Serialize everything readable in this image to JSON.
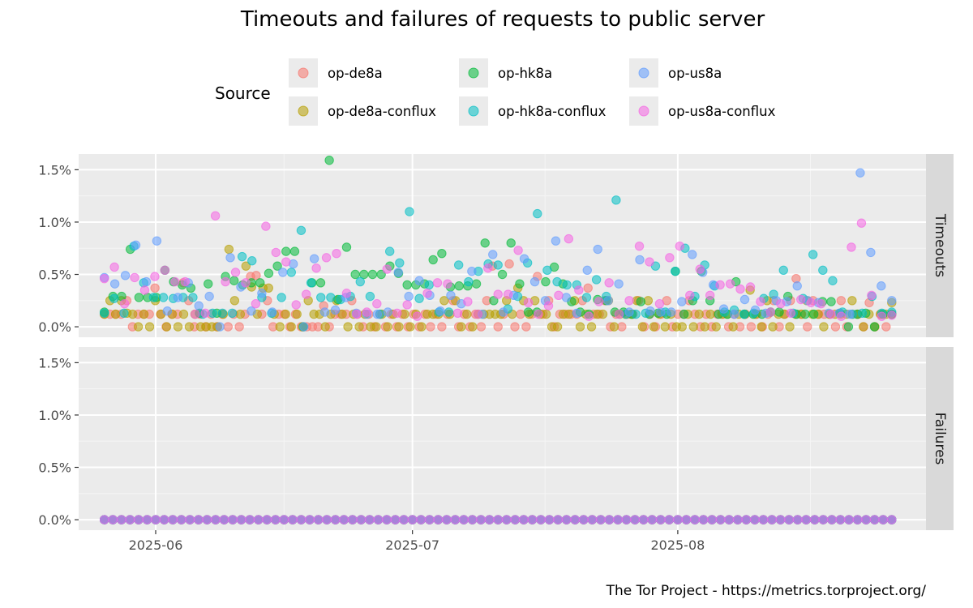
{
  "chart_data": {
    "type": "scatter",
    "title": "Timeouts and failures of requests to public server",
    "caption": "The Tor Project - https://metrics.torproject.org/",
    "legend": {
      "title": "Source",
      "placement": "top",
      "entries": [
        {
          "name": "op-de8a",
          "color": "#F8766D"
        },
        {
          "name": "op-de8a-conflux",
          "color": "#B79F00"
        },
        {
          "name": "op-hk8a",
          "color": "#00BA38"
        },
        {
          "name": "op-hk8a-conflux",
          "color": "#00BFC4"
        },
        {
          "name": "op-us8a",
          "color": "#619CFF"
        },
        {
          "name": "op-us8a-conflux",
          "color": "#F564E3"
        }
      ]
    },
    "x_axis": {
      "type": "date",
      "range": [
        "2025-05-23",
        "2025-08-30"
      ],
      "ticks": [
        "2025-06",
        "2025-07",
        "2025-08"
      ],
      "tick_dates": [
        "2025-06-01",
        "2025-07-01",
        "2025-08-01"
      ]
    },
    "y_axis": {
      "unit": "percent",
      "range": [
        -0.1,
        1.65
      ],
      "ticks": [
        "0.0%",
        "0.5%",
        "1.0%",
        "1.5%"
      ],
      "tick_values": [
        0,
        0.5,
        1.0,
        1.5
      ]
    },
    "grid": true,
    "start_date": "2025-05-26",
    "end_date": "2025-08-26",
    "facets": [
      {
        "label": "Timeouts",
        "series": [
          {
            "name": "op-de8a",
            "values": [
              0.12,
              0.12,
              0.12,
              0.12,
              0.25,
              0,
              0.12,
              0.12,
              0.12,
              0.37,
              0.12,
              0,
              0.12,
              0.12,
              0.42,
              0.25,
              0,
              0.12,
              0,
              0.12,
              0,
              0.12,
              0,
              0.12,
              0,
              0.12,
              0.48,
              0.49,
              0.12,
              0.25,
              0,
              0.12,
              0.12,
              0,
              0.12,
              0,
              0,
              0,
              0,
              0.2,
              0,
              0.12,
              0.12,
              0.12,
              0.25,
              0.12,
              0,
              0.12,
              0,
              0.12,
              0,
              0.12,
              0,
              0.12,
              0,
              0.12,
              0,
              0.12,
              0,
              0.12,
              0,
              0.12,
              0.25,
              0,
              0.12,
              0,
              0.12,
              0,
              0.25,
              0.58,
              0,
              0.12,
              0.6,
              0,
              0.12,
              0,
              0.12,
              0.48,
              0.12,
              0.25,
              0,
              0.12,
              0.12,
              0.12,
              0.12,
              0.25,
              0.37,
              0.12,
              0.12,
              0.25,
              0,
              0.12,
              0,
              0.12,
              0.12,
              0.25,
              0,
              0.12,
              0,
              0.12,
              0.25,
              0,
              0.12,
              0.12,
              0.25,
              0.12,
              0,
              0.12,
              0,
              0.12,
              0.12,
              0,
              0.12,
              0,
              0.12,
              0,
              0.12,
              0,
              0.12,
              0.25,
              0,
              0.12,
              0.25,
              0.46,
              0.12,
              0,
              0.25,
              0.12,
              0.12,
              0.12,
              0,
              0.25,
              0,
              0.12,
              0.12,
              0,
              0.23,
              0,
              0.12,
              0,
              0.12
            ]
          },
          {
            "name": "op-de8a-conflux",
            "values": [
              0.12,
              0.25,
              0.12,
              0.25,
              0.13,
              0.12,
              0,
              0.12,
              0,
              0.25,
              0.12,
              0,
              0.12,
              0,
              0.12,
              0,
              0.12,
              0,
              0,
              0,
              0,
              0.12,
              0.74,
              0.25,
              0.12,
              0.58,
              0.38,
              0.12,
              0.37,
              0.37,
              0.12,
              0,
              0.12,
              0,
              0.12,
              0,
              0.25,
              0.12,
              0.12,
              0,
              0.12,
              0.25,
              0.12,
              0,
              0.12,
              0,
              0.12,
              0,
              0,
              0.12,
              0,
              0.12,
              0,
              0.12,
              0,
              0.12,
              0,
              0.12,
              0.12,
              0.12,
              0.25,
              0.12,
              0.25,
              0,
              0.12,
              0,
              0.12,
              0.12,
              0.12,
              0.12,
              0.12,
              0.25,
              0.12,
              0.37,
              0.25,
              0.12,
              0.25,
              0.12,
              0.12,
              0,
              0,
              0.12,
              0.12,
              0.25,
              0,
              0.12,
              0,
              0.12,
              0.12,
              0.25,
              0,
              0.12,
              0.12,
              0.12,
              0.25,
              0,
              0.25,
              0,
              0.12,
              0,
              0.12,
              0,
              0,
              0.12,
              0,
              0.12,
              0,
              0.12,
              0,
              0.12,
              0.12,
              0,
              0.12,
              0.12,
              0.35,
              0.12,
              0,
              0.25,
              0,
              0.12,
              0.12,
              0,
              0.12,
              0.12,
              0.25,
              0.12,
              0.12,
              0,
              0.12,
              0.12,
              0.12,
              0.12,
              0.25,
              0.12,
              0,
              0.12,
              0,
              0.12,
              0.12,
              0.23
            ]
          },
          {
            "name": "op-hk8a",
            "values": [
              0.14,
              0.29,
              0.29,
              0.74,
              0.28,
              0.28,
              0.28,
              0.54,
              0.43,
              0.4,
              0.37,
              0.13,
              0.41,
              0.13,
              0.48,
              0.44,
              0.4,
              0.42,
              0.42,
              0.51,
              0.58,
              0.72,
              0.72,
              0,
              0.42,
              0.42,
              1.59,
              0.26,
              0.76,
              0.5,
              0.5,
              0.5,
              0.5,
              0.58,
              0.51,
              0.4,
              0.4,
              0.41,
              0.64,
              0.7,
              0.38,
              0.39,
              0.39,
              0.41,
              0.8,
              0.25,
              0.5,
              0.8,
              0.41,
              0.14,
              0.14,
              0.43,
              0.57,
              0.41,
              0.24,
              0.14,
              0.12,
              0.26,
              0.25,
              0.14,
              0.14,
              0.12,
              0.24,
              0.12,
              0.13,
              0.12,
              0.53,
              0.12,
              0.25,
              0.53,
              0.25,
              0.12,
              0.12,
              0.43,
              0.12,
              0.12,
              0.12,
              0.14,
              0.14,
              0.29,
              0.12,
              0.12,
              0.12,
              0.24,
              0.24,
              0.13,
              0,
              0.12,
              0.13,
              0,
              0.12,
              0.12
            ]
          },
          {
            "name": "op-hk8a-conflux",
            "values": [
              0.13,
              0.27,
              0.13,
              0.77,
              0.42,
              0.28,
              0.28,
              0.27,
              0.28,
              0.28,
              0.12,
              0.13,
              0.13,
              0.13,
              0.67,
              0.63,
              0.28,
              0.13,
              0.28,
              0.52,
              0.92,
              0.42,
              0.28,
              0.28,
              0.26,
              0.29,
              0.43,
              0.29,
              0.12,
              0.72,
              0.61,
              1.1,
              0.27,
              0.4,
              0.14,
              0.14,
              0.59,
              0.43,
              0.53,
              0.6,
              0.59,
              0.17,
              0.29,
              0.61,
              1.08,
              0.54,
              0.43,
              0.4,
              0.4,
              0.28,
              0.45,
              0.29,
              1.21,
              0.12,
              0.12,
              0.13,
              0.58,
              0.14,
              0.53,
              0.75,
              0.29,
              0.59,
              0.39,
              0.14,
              0.16,
              0.12,
              0.13,
              0.27,
              0.31,
              0.54,
              0.13,
              0.27,
              0.69,
              0.54,
              0.44,
              0.14,
              0.12,
              0.13,
              0.29,
              0.13,
              0.14
            ]
          },
          {
            "name": "op-us8a",
            "values": [
              0.47,
              0.41,
              0.49,
              0.78,
              0.43,
              0.82,
              0.15,
              0.28,
              0.42,
              0.2,
              0.29,
              0,
              0.66,
              0.38,
              0.15,
              0.32,
              0.14,
              0.52,
              0.6,
              0,
              0.65,
              0.14,
              0.16,
              0.28,
              0.13,
              0.12,
              0.12,
              0.14,
              0.52,
              0.29,
              0.44,
              0.3,
              0.15,
              0.3,
              0.22,
              0.53,
              0.12,
              0.69,
              0.14,
              0.3,
              0.65,
              0.43,
              0.25,
              0.82,
              0.28,
              0.13,
              0.54,
              0.74,
              0.25,
              0.41,
              0.14,
              0.64,
              0.15,
              0.14,
              0.14,
              0.24,
              0.69,
              0.52,
              0.4,
              0.17,
              0.12,
              0.26,
              0.16,
              0.13,
              0.25,
              0.24,
              0.39,
              0.25,
              0.23,
              0.13,
              0.13,
              0.12,
              1.47,
              0.71,
              0.39,
              0.25
            ]
          },
          {
            "name": "op-us8a-conflux",
            "values": [
              0.46,
              0.57,
              0.22,
              0.47,
              0.35,
              0.48,
              0.54,
              0.43,
              0.43,
              0.12,
              0.13,
              1.06,
              0.43,
              0.52,
              0.42,
              0.22,
              0.96,
              0.71,
              0.62,
              0.21,
              0.31,
              0.56,
              0.66,
              0.7,
              0.32,
              0.12,
              0.14,
              0.22,
              0.55,
              0.13,
              0.21,
              0.1,
              0.32,
              0.42,
              0.41,
              0.13,
              0.24,
              0.12,
              0.56,
              0.31,
              0.31,
              0.73,
              0.23,
              0.12,
              0.2,
              0.3,
              0.84,
              0.35,
              0.1,
              0.24,
              0.42,
              0.12,
              0.25,
              0.77,
              0.62,
              0.22,
              0.66,
              0.77,
              0.3,
              0.55,
              0.3,
              0.4,
              0.41,
              0.36,
              0.38,
              0.24,
              0.14,
              0.22,
              0.13,
              0.26,
              0.23,
              0.22,
              0.12,
              0.1,
              0.76,
              0.99,
              0.3,
              0.1,
              0.11
            ]
          }
        ]
      },
      {
        "label": "Failures",
        "series": [
          {
            "name": "op-de8a",
            "value": 0
          },
          {
            "name": "op-de8a-conflux",
            "value": 0
          },
          {
            "name": "op-hk8a",
            "value": 0
          },
          {
            "name": "op-hk8a-conflux",
            "value": 0
          },
          {
            "name": "op-us8a",
            "value": 0
          },
          {
            "name": "op-us8a-conflux",
            "value": 0
          }
        ]
      }
    ]
  }
}
